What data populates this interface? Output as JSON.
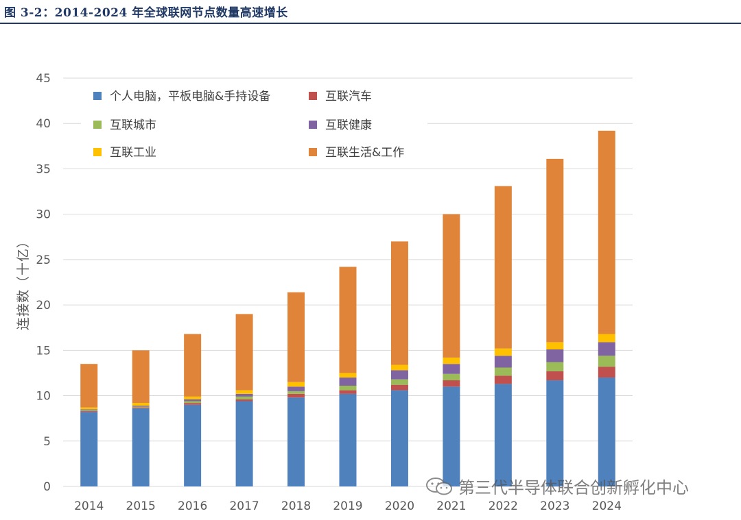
{
  "figure": {
    "title": "图 3-2：2014-2024 年全球联网节点数量高速增长"
  },
  "watermark": {
    "text": "第三代半导体联合创新孵化中心",
    "icon": "wechat-icon"
  },
  "chart_data": {
    "type": "bar",
    "stacked": true,
    "title": "",
    "xlabel": "",
    "ylabel": "连接数（十亿）",
    "ylim": [
      0,
      45
    ],
    "yticks": [
      0,
      5,
      10,
      15,
      20,
      25,
      30,
      35,
      40,
      45
    ],
    "grid": true,
    "legend_position": "top-left",
    "categories": [
      "2014",
      "2015",
      "2016",
      "2017",
      "2018",
      "2019",
      "2020",
      "2021",
      "2022",
      "2023",
      "2024"
    ],
    "series": [
      {
        "name": "个人电脑，平板电脑&手持设备",
        "color": "#4f81bd",
        "values": [
          8.2,
          8.6,
          9.0,
          9.4,
          9.8,
          10.2,
          10.6,
          11.0,
          11.3,
          11.7,
          12.0
        ]
      },
      {
        "name": "互联汽车",
        "color": "#c0504d",
        "values": [
          0.1,
          0.1,
          0.2,
          0.2,
          0.4,
          0.4,
          0.6,
          0.7,
          0.9,
          1.0,
          1.2
        ]
      },
      {
        "name": "互联城市",
        "color": "#9bbb59",
        "values": [
          0.1,
          0.1,
          0.2,
          0.3,
          0.3,
          0.5,
          0.6,
          0.7,
          0.9,
          1.0,
          1.2
        ]
      },
      {
        "name": "互联健康",
        "color": "#8064a2",
        "values": [
          0.1,
          0.1,
          0.2,
          0.3,
          0.5,
          0.9,
          1.0,
          1.1,
          1.3,
          1.4,
          1.5
        ]
      },
      {
        "name": "互联工业",
        "color": "#ffc000",
        "values": [
          0.2,
          0.3,
          0.3,
          0.4,
          0.5,
          0.5,
          0.6,
          0.7,
          0.8,
          0.8,
          0.9
        ]
      },
      {
        "name": "互联生活&工作",
        "color": "#e0843a",
        "values": [
          4.8,
          5.8,
          6.9,
          8.4,
          9.9,
          11.7,
          13.6,
          15.8,
          17.9,
          20.2,
          22.4
        ]
      }
    ]
  }
}
